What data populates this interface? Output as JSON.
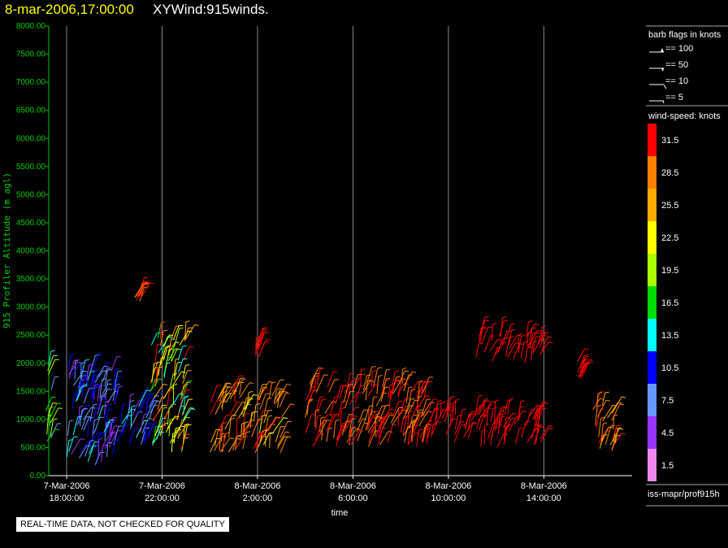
{
  "title": {
    "date": "8-mar-2006,17:00:00",
    "name": "XYWind:915winds."
  },
  "chart_data": {
    "type": "scatter",
    "mark": "wind-barb",
    "xlabel": "time",
    "ylabel": "915 Profiler Altitude (m agl)",
    "ylim": [
      0,
      8000
    ],
    "y_ticks": [
      "0.00",
      "500.00",
      "1000.00",
      "1500.00",
      "2000.00",
      "2500.00",
      "3000.00",
      "3500.00",
      "4000.00",
      "4500.00",
      "5000.00",
      "5500.00",
      "6000.00",
      "6500.00",
      "7000.00",
      "7500.00",
      "8000.00"
    ],
    "xlim_hours_from_first_tick": [
      -0.75,
      23.7
    ],
    "x_ticks": [
      {
        "date": "7-Mar-2006",
        "time": "18:00:00"
      },
      {
        "date": "7-Mar-2006",
        "time": "22:00:00"
      },
      {
        "date": "8-Mar-2006",
        "time": "2:00:00"
      },
      {
        "date": "8-Mar-2006",
        "time": "6:00:00"
      },
      {
        "date": "8-Mar-2006",
        "time": "10:00:00"
      },
      {
        "date": "8-Mar-2006",
        "time": "14:00:00"
      }
    ],
    "grid_x": true,
    "series": [
      {
        "time": "7-Mar-2006 17:15",
        "alt_range": [
          400,
          2000
        ],
        "speed_knots": [
          4.5,
          22.5
        ]
      },
      {
        "time": "7-Mar-2006 18:00-20:00",
        "alt_range": [
          150,
          1900
        ],
        "speed_knots": [
          4.5,
          13.5
        ]
      },
      {
        "time": "7-Mar-2006 20:00-21:30",
        "alt_range": [
          500,
          1300
        ],
        "speed_knots": [
          4.5,
          13.5
        ]
      },
      {
        "time": "7-Mar-2006 21:00",
        "alt_range": [
          3100,
          3250
        ],
        "speed_knots": [
          28.5,
          31.5
        ]
      },
      {
        "time": "7-Mar-2006 21:30-23:00",
        "alt_range": [
          400,
          2500
        ],
        "speed_knots": [
          13.5,
          31.5
        ]
      },
      {
        "time": "8-Mar-2006 0:00-3:00",
        "alt_range": [
          400,
          1500
        ],
        "speed_knots": [
          22.5,
          31.5
        ]
      },
      {
        "time": "8-Mar-2006 2:00",
        "alt_range": [
          2100,
          2400
        ],
        "speed_knots": [
          31.5,
          31.5
        ]
      },
      {
        "time": "8-Mar-2006 4:00-9:00",
        "alt_range": [
          500,
          1650
        ],
        "speed_knots": [
          28.5,
          31.5
        ]
      },
      {
        "time": "8-Mar-2006 9:00-14:00",
        "alt_range": [
          500,
          1100
        ],
        "speed_knots": [
          31.5,
          31.5
        ]
      },
      {
        "time": "8-Mar-2006 11:00-14:00",
        "alt_range": [
          2000,
          2500
        ],
        "speed_knots": [
          31.5,
          31.5
        ]
      },
      {
        "time": "8-Mar-2006 16:00-17:00",
        "alt_range": [
          400,
          1300
        ],
        "speed_knots": [
          25.5,
          31.5
        ]
      },
      {
        "time": "8-Mar-2006 15:30",
        "alt_range": [
          1700,
          2050
        ],
        "speed_knots": [
          31.5,
          31.5
        ]
      }
    ]
  },
  "legend": {
    "barb_title": "barb flags in knots",
    "barbs": [
      {
        "kind": "flag",
        "label": "== 100"
      },
      {
        "kind": "pennant",
        "label": "== 50"
      },
      {
        "kind": "full",
        "label": "== 10"
      },
      {
        "kind": "half",
        "label": "== 5"
      }
    ],
    "speed_title": "wind-speed: knots",
    "speed_bins": [
      {
        "label": "31.5",
        "color": "#ff0000"
      },
      {
        "label": "28.5",
        "color": "#ff7f00"
      },
      {
        "label": "25.5",
        "color": "#ffaa00"
      },
      {
        "label": "22.5",
        "color": "#ffff00"
      },
      {
        "label": "19.5",
        "color": "#aaff00"
      },
      {
        "label": "16.5",
        "color": "#00dd00"
      },
      {
        "label": "13.5",
        "color": "#00ffff"
      },
      {
        "label": "10.5",
        "color": "#0000ff"
      },
      {
        "label": "7.5",
        "color": "#6699ff"
      },
      {
        "label": "4.5",
        "color": "#9933ff"
      },
      {
        "label": "1.5",
        "color": "#ee88ee"
      }
    ]
  },
  "source": "iss-mapr/prof915h",
  "disclaimer": "REAL-TIME DATA, NOT CHECKED FOR QUALITY"
}
